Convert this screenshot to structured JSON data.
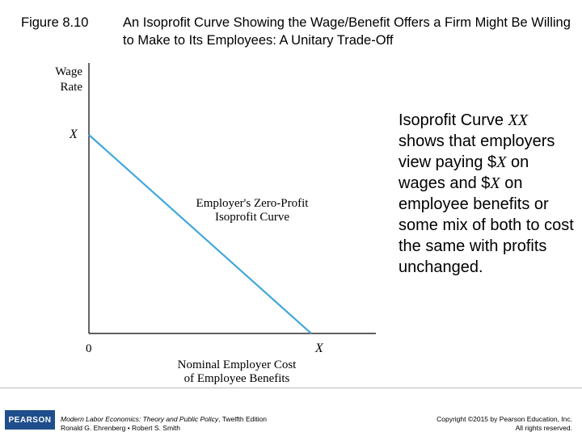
{
  "title": {
    "figure_number": "Figure 8.10",
    "text": "An Isoprofit Curve Showing the Wage/Benefit Offers a Firm Might Be Willing to Make to Its Employees: A Unitary Trade-Off"
  },
  "diagram": {
    "y_axis_label_line1": "Wage",
    "y_axis_label_line2": "Rate",
    "y_intercept_label": "X",
    "origin_label": "0",
    "x_intercept_label": "X",
    "curve_label_line1": "Employer's Zero-Profit",
    "curve_label_line2": "Isoprofit Curve",
    "x_axis_label_line1": "Nominal Employer Cost",
    "x_axis_label_line2": "of Employee Benefits",
    "curve_color": "#3fa7dc"
  },
  "caption": {
    "part1": "Isoprofit Curve ",
    "var1": "XX",
    "part2": " shows that employers view paying $",
    "var2": "X",
    "part3": " on wages and $",
    "var3": "X",
    "part4": " on employee benefits or some mix of both to cost the same with profits unchanged."
  },
  "footer": {
    "logo_text": "PEARSON",
    "book_title": "Modern Labor Economics: Theory and Public Policy",
    "book_edition": ", Twelfth Edition",
    "authors": "Ronald G. Ehrenberg • Robert S. Smith",
    "copyright_line1": "Copyright ©2015 by Pearson Education, Inc.",
    "copyright_line2": "All rights reserved."
  }
}
